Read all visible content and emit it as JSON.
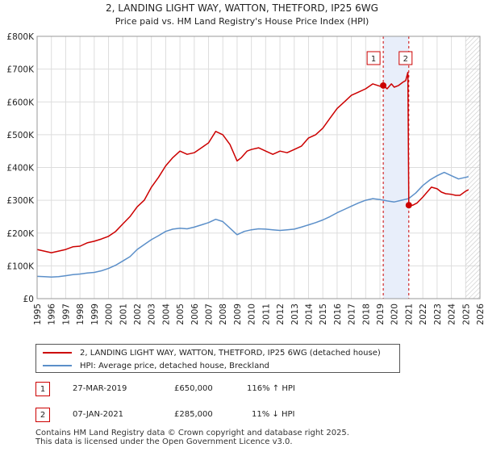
{
  "chart_data": {
    "type": "line",
    "title": "2, LANDING LIGHT WAY, WATTON, THETFORD, IP25 6WG",
    "subtitle": "Price paid vs. HM Land Registry's House Price Index (HPI)",
    "xlim": [
      1995,
      2026
    ],
    "ylim": [
      0,
      800000
    ],
    "x_ticks": [
      1995,
      1996,
      1997,
      1998,
      1999,
      2000,
      2001,
      2002,
      2003,
      2004,
      2005,
      2006,
      2007,
      2008,
      2009,
      2010,
      2011,
      2012,
      2013,
      2014,
      2015,
      2016,
      2017,
      2018,
      2019,
      2020,
      2021,
      2022,
      2023,
      2024,
      2025,
      2026
    ],
    "y_ticks": [
      {
        "value": 0,
        "label": "£0"
      },
      {
        "value": 100000,
        "label": "£100K"
      },
      {
        "value": 200000,
        "label": "£200K"
      },
      {
        "value": 300000,
        "label": "£300K"
      },
      {
        "value": 400000,
        "label": "£400K"
      },
      {
        "value": 500000,
        "label": "£500K"
      },
      {
        "value": 600000,
        "label": "£600K"
      },
      {
        "value": 700000,
        "label": "£700K"
      },
      {
        "value": 800000,
        "label": "£800K"
      }
    ],
    "grid": true,
    "shaded_region": {
      "from": 2019.23,
      "to": 2021.02
    },
    "forecast_hatch_from": 2025.0,
    "series": [
      {
        "name": "2, LANDING LIGHT WAY, WATTON, THETFORD, IP25 6WG (detached house)",
        "color": "#cc0000",
        "x": [
          1995.0,
          1995.5,
          1996.0,
          1996.5,
          1997.0,
          1997.5,
          1998.0,
          1998.5,
          1999.0,
          1999.5,
          2000.0,
          2000.5,
          2001.0,
          2001.5,
          2002.0,
          2002.5,
          2003.0,
          2003.5,
          2004.0,
          2004.5,
          2005.0,
          2005.5,
          2006.0,
          2006.5,
          2007.0,
          2007.5,
          2008.0,
          2008.5,
          2009.0,
          2009.3,
          2009.7,
          2010.0,
          2010.5,
          2011.0,
          2011.5,
          2012.0,
          2012.5,
          2013.0,
          2013.5,
          2014.0,
          2014.5,
          2015.0,
          2015.5,
          2016.0,
          2016.5,
          2017.0,
          2017.5,
          2018.0,
          2018.5,
          2019.0,
          2019.23,
          2019.5,
          2019.8,
          2020.0,
          2020.3,
          2020.6,
          2020.8,
          2020.95,
          2021.02,
          2021.3,
          2021.6,
          2022.0,
          2022.3,
          2022.6,
          2023.0,
          2023.3,
          2023.6,
          2024.0,
          2024.3,
          2024.6,
          2025.0,
          2025.2
        ],
        "values": [
          150000,
          145000,
          140000,
          145000,
          150000,
          158000,
          160000,
          170000,
          175000,
          182000,
          190000,
          205000,
          228000,
          250000,
          280000,
          300000,
          340000,
          370000,
          405000,
          430000,
          450000,
          440000,
          445000,
          460000,
          475000,
          510000,
          500000,
          470000,
          420000,
          430000,
          450000,
          455000,
          460000,
          450000,
          440000,
          450000,
          445000,
          455000,
          465000,
          490000,
          500000,
          520000,
          550000,
          580000,
          600000,
          620000,
          630000,
          640000,
          655000,
          648000,
          650000,
          640000,
          655000,
          645000,
          650000,
          660000,
          665000,
          690000,
          285000,
          285000,
          292000,
          310000,
          325000,
          340000,
          335000,
          325000,
          320000,
          318000,
          315000,
          315000,
          328000,
          332000
        ]
      },
      {
        "name": "HPI: Average price, detached house, Breckland",
        "color": "#5b8fc9",
        "x": [
          1995.0,
          1995.5,
          1996.0,
          1996.5,
          1997.0,
          1997.5,
          1998.0,
          1998.5,
          1999.0,
          1999.5,
          2000.0,
          2000.5,
          2001.0,
          2001.5,
          2002.0,
          2002.5,
          2003.0,
          2003.5,
          2004.0,
          2004.5,
          2005.0,
          2005.5,
          2006.0,
          2006.5,
          2007.0,
          2007.5,
          2008.0,
          2008.5,
          2009.0,
          2009.5,
          2010.0,
          2010.5,
          2011.0,
          2011.5,
          2012.0,
          2012.5,
          2013.0,
          2013.5,
          2014.0,
          2014.5,
          2015.0,
          2015.5,
          2016.0,
          2016.5,
          2017.0,
          2017.5,
          2018.0,
          2018.5,
          2019.0,
          2019.5,
          2020.0,
          2020.5,
          2021.0,
          2021.5,
          2022.0,
          2022.5,
          2023.0,
          2023.5,
          2024.0,
          2024.5,
          2025.0,
          2025.2
        ],
        "values": [
          68000,
          67000,
          66000,
          67000,
          70000,
          73000,
          75000,
          78000,
          80000,
          85000,
          92000,
          102000,
          115000,
          128000,
          150000,
          165000,
          180000,
          192000,
          205000,
          212000,
          215000,
          213000,
          218000,
          225000,
          232000,
          242000,
          235000,
          215000,
          195000,
          205000,
          210000,
          213000,
          212000,
          210000,
          208000,
          210000,
          212000,
          218000,
          225000,
          232000,
          240000,
          250000,
          262000,
          272000,
          282000,
          292000,
          300000,
          305000,
          302000,
          298000,
          295000,
          300000,
          305000,
          322000,
          345000,
          362000,
          375000,
          385000,
          375000,
          365000,
          370000,
          372000
        ]
      }
    ],
    "annotations": [
      {
        "label": "1",
        "x": 2019.23,
        "y": 650000
      },
      {
        "label": "2",
        "x": 2021.02,
        "y": 285000
      }
    ]
  },
  "legend": {
    "entries": [
      {
        "label": "2, LANDING LIGHT WAY, WATTON, THETFORD, IP25 6WG (detached house)",
        "color": "#cc0000"
      },
      {
        "label": "HPI: Average price, detached house, Breckland",
        "color": "#5b8fc9"
      }
    ]
  },
  "transactions": [
    {
      "num": "1",
      "date": "27-MAR-2019",
      "price": "£650,000",
      "hpi": "116% ↑ HPI"
    },
    {
      "num": "2",
      "date": "07-JAN-2021",
      "price": "£285,000",
      "hpi": "11% ↓ HPI"
    }
  ],
  "footer": {
    "line1": "Contains HM Land Registry data © Crown copyright and database right 2025.",
    "line2": "This data is licensed under the Open Government Licence v3.0."
  }
}
